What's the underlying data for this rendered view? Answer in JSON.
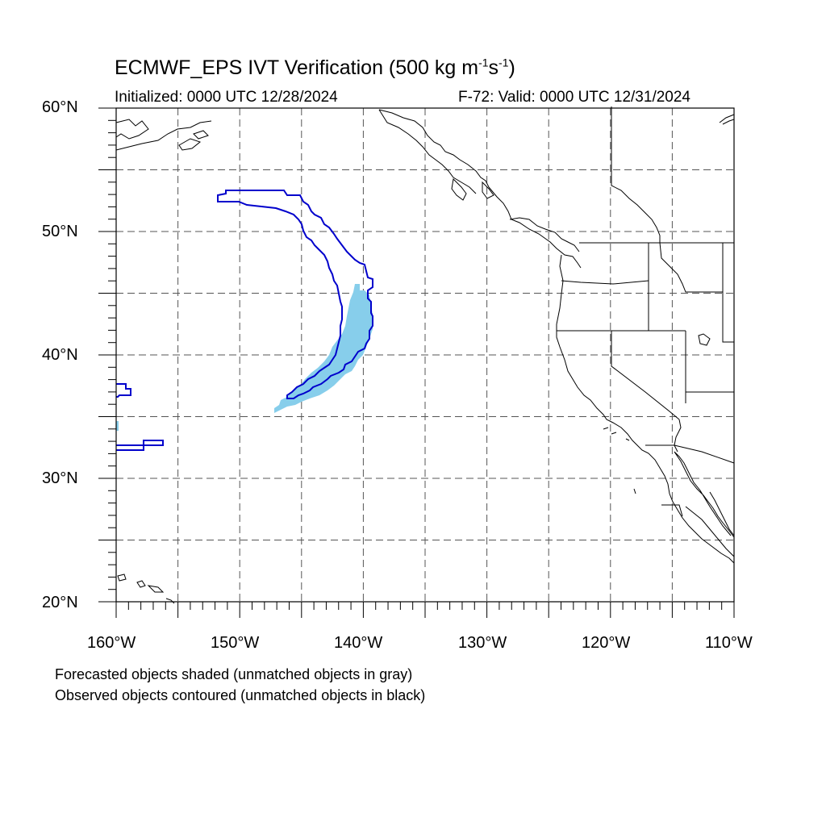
{
  "title": {
    "main_pre": "ECMWF_EPS IVT Verification (500 kg m",
    "sup1": "-1",
    "mid": "s",
    "sup2": "-1",
    "post": ")"
  },
  "initialized": "Initialized: 0000 UTC 12/28/2024",
  "valid": "F-72: Valid: 0000 UTC 12/31/2024",
  "axes": {
    "lat_labels": [
      "60°N",
      "50°N",
      "40°N",
      "30°N",
      "20°N"
    ],
    "lon_labels": [
      "160°W",
      "150°W",
      "140°W",
      "130°W",
      "120°W",
      "110°W"
    ],
    "lat_range": [
      20,
      60
    ],
    "lon_range": [
      -160,
      -110
    ],
    "grid": "dashed, every 5°"
  },
  "notes": {
    "forecast": "Forecasted objects shaded (unmatched objects in gray)",
    "observed": "Observed objects contoured (unmatched objects in black)"
  },
  "colors": {
    "forecast_fill": "#87ceeb",
    "observed_contour": "#0000cc",
    "coastline": "#000000",
    "grid": "#555555"
  }
}
